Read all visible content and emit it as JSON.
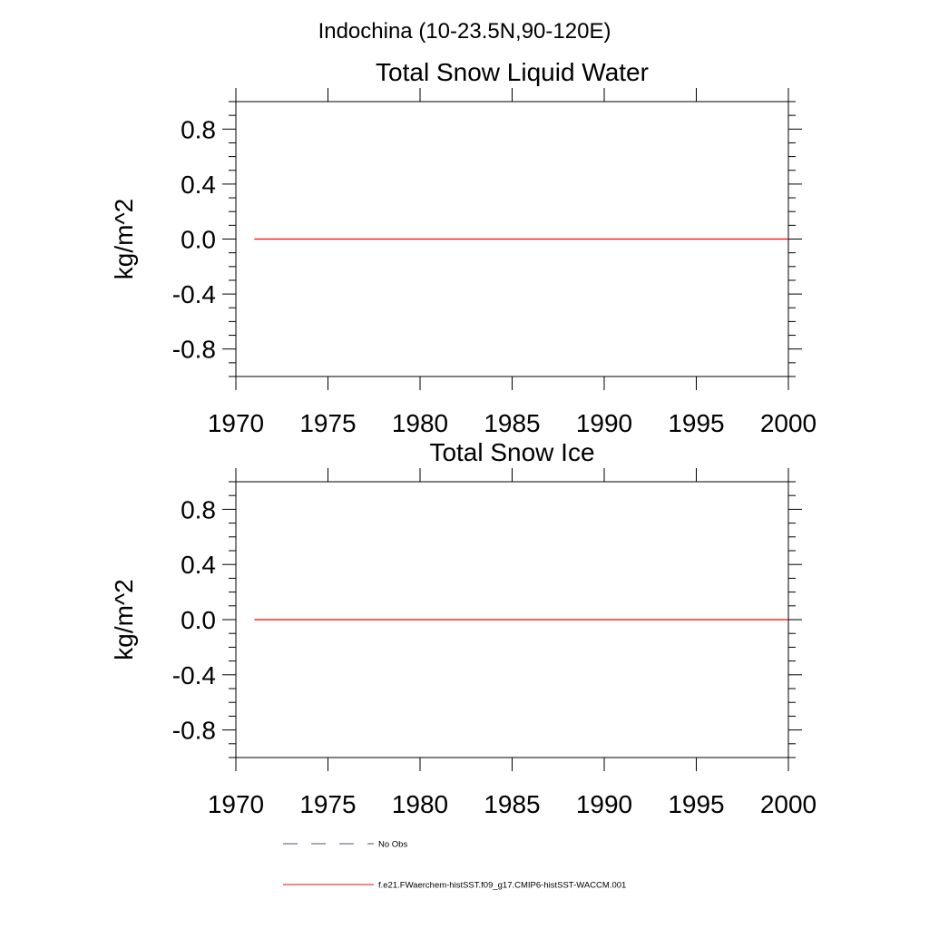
{
  "figure_title": "Indochina (10-23.5N,90-120E)",
  "chart_data": [
    {
      "type": "line",
      "title": "Total Snow Liquid Water",
      "xlabel": "",
      "ylabel": "kg/m^2",
      "xlim": [
        1970,
        2000
      ],
      "ylim": [
        -1.0,
        1.0
      ],
      "x_ticks": [
        1970,
        1975,
        1980,
        1985,
        1990,
        1995,
        2000
      ],
      "y_ticks": [
        -0.8,
        -0.4,
        0.0,
        0.4,
        0.8
      ],
      "y_tick_labels": [
        "-0.8",
        "-0.4",
        "0.0",
        "0.4",
        "0.8"
      ],
      "grid": false,
      "series": [
        {
          "name": "f.e21.FWaerchem-histSST.f09_g17.CMIP6-histSST-WACCM.001",
          "color": "#ff0000",
          "style": "solid",
          "x": [
            1971,
            2000
          ],
          "y": [
            0.0,
            0.0
          ]
        }
      ]
    },
    {
      "type": "line",
      "title": "Total Snow Ice",
      "xlabel": "",
      "ylabel": "kg/m^2",
      "xlim": [
        1970,
        2000
      ],
      "ylim": [
        -1.0,
        1.0
      ],
      "x_ticks": [
        1970,
        1975,
        1980,
        1985,
        1990,
        1995,
        2000
      ],
      "y_ticks": [
        -0.8,
        -0.4,
        0.0,
        0.4,
        0.8
      ],
      "y_tick_labels": [
        "-0.8",
        "-0.4",
        "0.0",
        "0.4",
        "0.8"
      ],
      "grid": false,
      "series": [
        {
          "name": "f.e21.FWaerchem-histSST.f09_g17.CMIP6-histSST-WACCM.001",
          "color": "#ff0000",
          "style": "solid",
          "x": [
            1971,
            2000
          ],
          "y": [
            0.0,
            0.0
          ]
        }
      ]
    }
  ],
  "legend": {
    "placement": "bottom",
    "entries": [
      {
        "label": "No Obs",
        "color": "#4a5570",
        "style": "dashed"
      },
      {
        "label": "f.e21.FWaerchem-histSST.f09_g17.CMIP6-histSST-WACCM.001",
        "color": "#ff0000",
        "style": "solid"
      }
    ]
  }
}
